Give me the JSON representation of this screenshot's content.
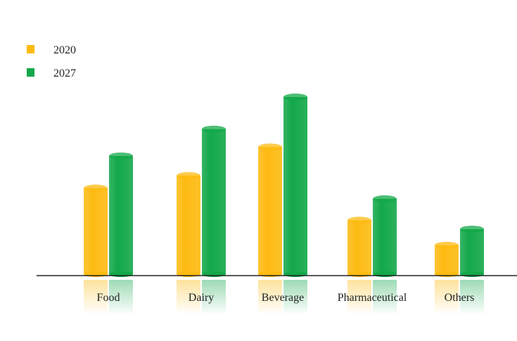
{
  "chart_data": {
    "type": "bar",
    "title": "",
    "xlabel": "",
    "ylabel": "",
    "categories": [
      "Food",
      "Dairy",
      "Beverage",
      "Pharmaceutical",
      "Others"
    ],
    "series": [
      {
        "name": "2020",
        "color": "#FDBB12",
        "values": [
          49,
          56,
          72,
          31,
          17
        ]
      },
      {
        "name": "2027",
        "color": "#13A84A",
        "values": [
          67,
          82,
          100,
          43,
          26
        ]
      }
    ],
    "ylim": [
      0,
      100
    ],
    "y_axis_visible": false,
    "grid": false,
    "legend": "top-left",
    "style": "3d-cylinders-with-reflection"
  }
}
